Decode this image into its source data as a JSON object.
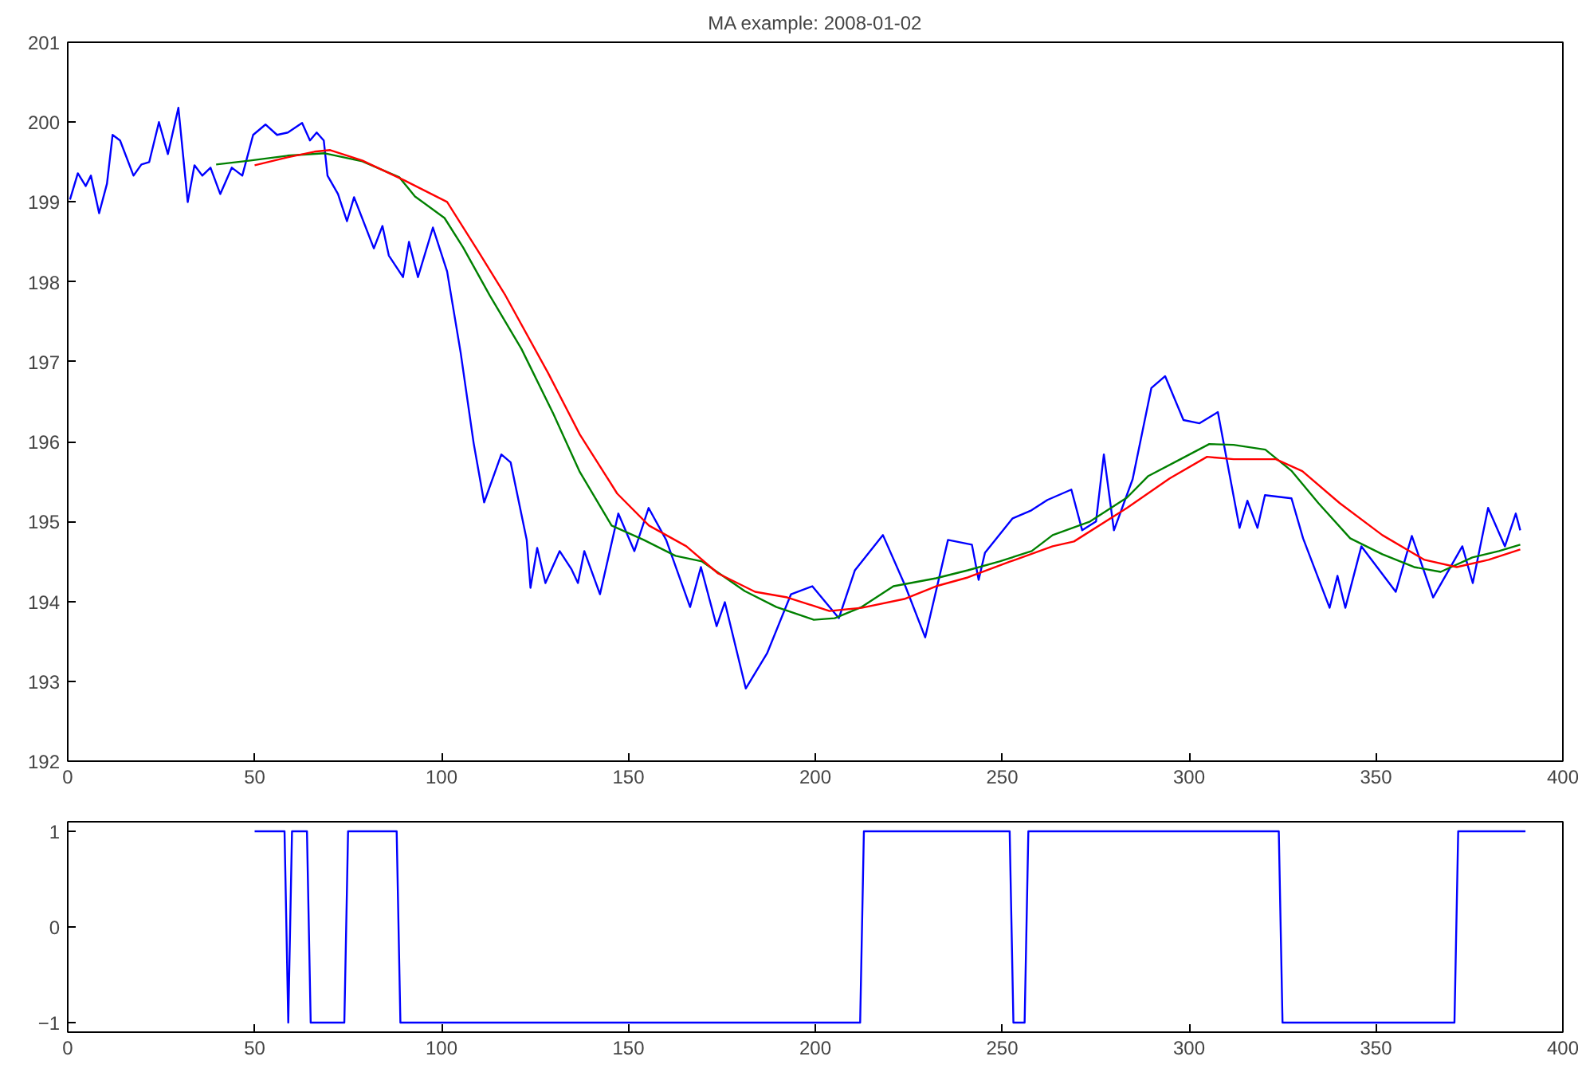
{
  "chart_data": [
    {
      "type": "line",
      "title": "MA example: 2008-01-02",
      "xlim": [
        0,
        400
      ],
      "xticks": [
        0,
        50,
        100,
        150,
        200,
        250,
        300,
        350,
        400
      ],
      "ylim": [
        192,
        201
      ],
      "yticks": [
        192,
        193,
        194,
        195,
        196,
        197,
        198,
        199,
        200,
        201
      ],
      "grid": false,
      "series": [
        {
          "color": "#0000ff",
          "x": [
            0.6,
            2.7,
            4.8,
            6.2,
            8.4,
            10.5,
            12,
            14,
            17.6,
            19.7,
            21.8,
            24.4,
            26.8,
            29.6,
            32.1,
            33.9,
            36,
            38.2,
            40.8,
            43.9,
            46.7,
            49.6,
            52.9,
            56,
            58.9,
            62.7,
            64.8,
            66.6,
            68.5,
            69.5,
            72.3,
            74.7,
            76.6,
            81.9,
            84.2,
            85.9,
            89.7,
            91.3,
            93.7,
            97.7,
            101.5,
            105.1,
            108.6,
            111.4,
            116,
            118.5,
            122.8,
            123.8,
            125.6,
            127.8,
            131.6,
            134.8,
            136.5,
            138.2,
            142.4,
            147.3,
            151.6,
            155.4,
            160.1,
            166.5,
            169.4,
            173.6,
            175.8,
            181.4,
            187.1,
            193.5,
            199.2,
            206.3,
            210.6,
            218.1,
            224.1,
            229.4,
            235.5,
            241.9,
            243.7,
            245.4,
            252.8,
            257.8,
            262.1,
            268.5,
            271.4,
            275.1,
            277.2,
            279.9,
            284.9,
            289.9,
            293.6,
            298.5,
            302.8,
            307.7,
            313.5,
            315.6,
            318.3,
            320.3,
            327.4,
            330.5,
            337.6,
            339.7,
            341.8,
            346.1,
            355.3,
            359.6,
            365.3,
            373.1,
            375.9,
            380,
            384.5,
            387.4,
            388.6
          ],
          "values": [
            199.03,
            199.36,
            199.2,
            199.33,
            198.86,
            199.23,
            199.84,
            199.77,
            199.33,
            199.47,
            199.5,
            200.0,
            199.6,
            200.18,
            199.0,
            199.46,
            199.33,
            199.43,
            199.1,
            199.43,
            199.33,
            199.84,
            199.97,
            199.84,
            199.87,
            199.99,
            199.77,
            199.87,
            199.77,
            199.33,
            199.1,
            198.76,
            199.06,
            198.42,
            198.7,
            198.33,
            198.06,
            198.5,
            198.06,
            198.68,
            198.13,
            197.12,
            195.98,
            195.24,
            195.84,
            195.74,
            194.77,
            194.17,
            194.67,
            194.23,
            194.63,
            194.4,
            194.23,
            194.63,
            194.09,
            195.1,
            194.63,
            195.17,
            194.77,
            193.93,
            194.43,
            193.69,
            193.99,
            192.91,
            193.35,
            194.09,
            194.19,
            193.79,
            194.39,
            194.83,
            194.19,
            193.55,
            194.77,
            194.71,
            194.27,
            194.61,
            195.04,
            195.14,
            195.27,
            195.4,
            194.89,
            195.0,
            195.84,
            194.89,
            195.53,
            196.67,
            196.82,
            196.27,
            196.23,
            196.37,
            194.92,
            195.26,
            194.92,
            195.33,
            195.29,
            194.79,
            193.92,
            194.32,
            193.92,
            194.69,
            194.12,
            194.82,
            194.05,
            194.69,
            194.23,
            195.17,
            194.69,
            195.1,
            194.89
          ]
        },
        {
          "color": "#008000",
          "x": [
            39.7,
            48.9,
            58.8,
            68.8,
            78.8,
            88.7,
            92.9,
            100.8,
            105.8,
            112.9,
            121.4,
            129.9,
            137,
            145.5,
            154.1,
            162.6,
            169.7,
            181.1,
            189.6,
            199.6,
            205.2,
            212.4,
            220.9,
            232.3,
            240.8,
            249.3,
            257.9,
            263.5,
            273.5,
            283.4,
            289.1,
            297.7,
            305.4,
            311.9,
            320.4,
            327.5,
            334.6,
            343.1,
            351.7,
            360.2,
            367.3,
            375.8,
            382.9,
            388.6
          ],
          "values": [
            199.47,
            199.52,
            199.58,
            199.61,
            199.51,
            199.31,
            199.07,
            198.8,
            198.43,
            197.83,
            197.16,
            196.35,
            195.62,
            194.95,
            194.77,
            194.57,
            194.5,
            194.13,
            193.93,
            193.77,
            193.79,
            193.93,
            194.19,
            194.29,
            194.39,
            194.5,
            194.63,
            194.83,
            195.0,
            195.3,
            195.57,
            195.78,
            195.97,
            195.96,
            195.9,
            195.63,
            195.23,
            194.79,
            194.59,
            194.43,
            194.37,
            194.55,
            194.63,
            194.71
          ]
        },
        {
          "color": "#ff0000",
          "x": [
            50,
            58.8,
            66,
            70.2,
            78.8,
            90.1,
            101.5,
            110,
            117.1,
            128.5,
            137,
            147,
            155.5,
            165.5,
            174,
            183.9,
            192.5,
            203.8,
            212.4,
            223.8,
            232.3,
            240.8,
            252.2,
            263.5,
            269.2,
            283.4,
            294.8,
            304.8,
            311.9,
            323.2,
            330.3,
            340.3,
            351.7,
            363,
            371.6,
            380.1,
            388.6
          ],
          "values": [
            199.46,
            199.56,
            199.63,
            199.65,
            199.52,
            199.27,
            199.0,
            198.37,
            197.83,
            196.86,
            196.09,
            195.35,
            194.95,
            194.69,
            194.35,
            194.12,
            194.05,
            193.88,
            193.92,
            194.03,
            194.19,
            194.3,
            194.5,
            194.69,
            194.75,
            195.17,
            195.54,
            195.81,
            195.78,
            195.78,
            195.63,
            195.23,
            194.83,
            194.52,
            194.43,
            194.52,
            194.65
          ]
        }
      ]
    },
    {
      "type": "line",
      "xlim": [
        0,
        400
      ],
      "xticks": [
        0,
        50,
        100,
        150,
        200,
        250,
        300,
        350,
        400
      ],
      "ylim": [
        -1.1,
        1.1
      ],
      "yticks": [
        -1,
        0,
        1
      ],
      "grid": false,
      "series": [
        {
          "color": "#0000ff",
          "x": [
            50,
            58,
            59,
            60,
            64,
            65,
            74,
            75,
            88,
            89,
            212,
            213,
            252,
            253,
            256,
            257,
            324,
            325,
            371,
            372,
            390
          ],
          "values": [
            1,
            1,
            -1,
            1,
            1,
            -1,
            -1,
            1,
            1,
            -1,
            -1,
            1,
            1,
            -1,
            -1,
            1,
            1,
            -1,
            -1,
            1,
            1
          ]
        }
      ]
    }
  ]
}
